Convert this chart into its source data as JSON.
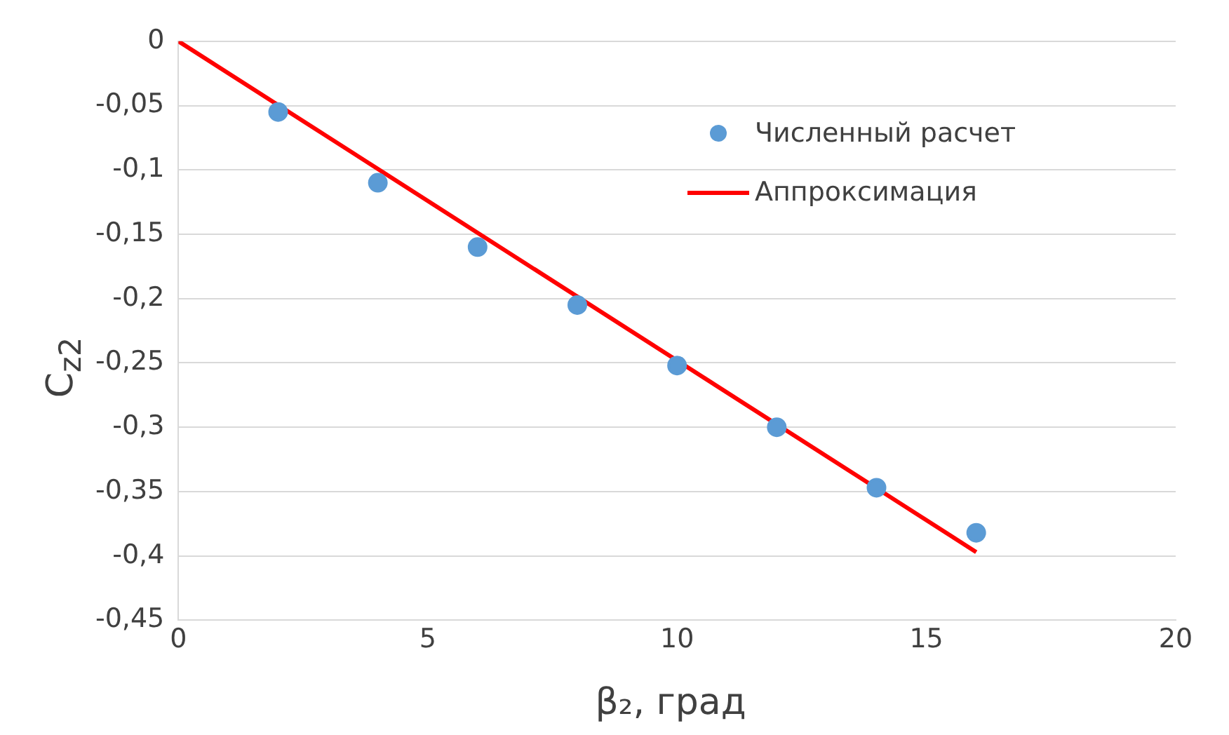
{
  "chart_data": {
    "type": "scatter",
    "xlabel": "β₂, град",
    "ylabel": "C$_{z2}$",
    "xlim": [
      0,
      20
    ],
    "xticks": [
      0,
      5,
      10,
      15,
      20
    ],
    "ylim": [
      -0.45,
      0
    ],
    "yticks": [
      {
        "value": 0,
        "label": "0"
      },
      {
        "value": -0.05,
        "label": "-0,05"
      },
      {
        "value": -0.1,
        "label": "-0,1"
      },
      {
        "value": -0.15,
        "label": "-0,15"
      },
      {
        "value": -0.2,
        "label": "-0,2"
      },
      {
        "value": -0.25,
        "label": "-0,25"
      },
      {
        "value": -0.3,
        "label": "-0,3"
      },
      {
        "value": -0.35,
        "label": "-0,35"
      },
      {
        "value": -0.4,
        "label": "-0,4"
      },
      {
        "value": -0.45,
        "label": "-0,45"
      }
    ],
    "grid": "y",
    "legend": "top right",
    "marker": "circle",
    "series": [
      {
        "name": "Численный расчет",
        "type": "scatter",
        "color": "#5b9bd5",
        "x": [
          2,
          4,
          6,
          8,
          10,
          12,
          14,
          16
        ],
        "values": [
          -0.055,
          -0.11,
          -0.16,
          -0.205,
          -0.252,
          -0.3,
          -0.347,
          -0.382
        ]
      },
      {
        "name": "Аппроксимация",
        "type": "line",
        "color": "#ff0000",
        "x": [
          0,
          16
        ],
        "values": [
          0,
          -0.397
        ],
        "line_style": "solid",
        "marker": "none"
      }
    ]
  }
}
